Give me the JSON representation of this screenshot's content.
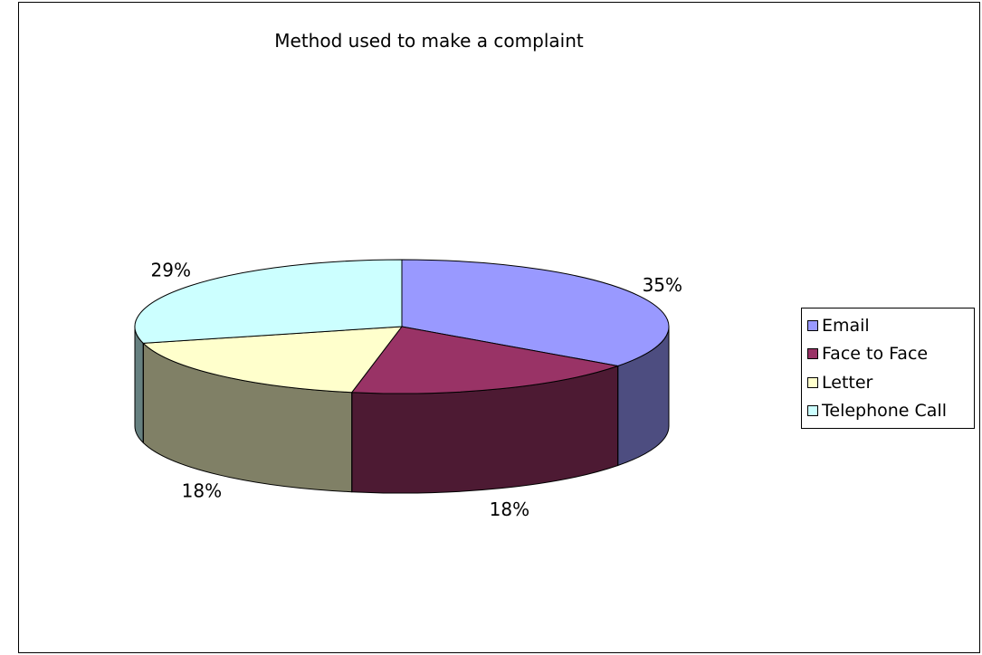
{
  "chart_data": {
    "type": "pie",
    "title": "Method used to make a complaint",
    "categories": [
      "Email",
      "Face to Face",
      "Letter",
      "Telephone Call"
    ],
    "values": [
      35,
      18,
      18,
      29
    ],
    "value_labels": [
      "35%",
      "18%",
      "18%",
      "29%"
    ],
    "colors": [
      "#9999FF",
      "#993366",
      "#FFFFCC",
      "#CCFFFF"
    ],
    "side_colors": [
      "#4D4D80",
      "#4D1A33",
      "#808066",
      "#668080"
    ],
    "three_d": true,
    "legend_position": "right"
  }
}
